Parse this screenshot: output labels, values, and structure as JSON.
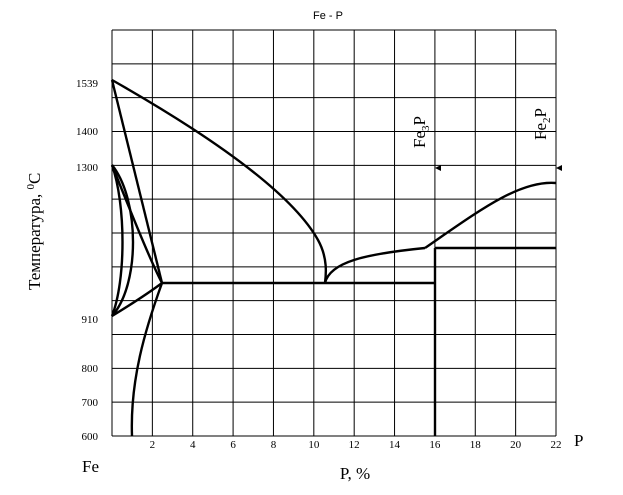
{
  "title": "Fe - P",
  "x_axis": {
    "label": "P, %",
    "end_label": "P",
    "origin_label": "Fe",
    "ticks": [
      "2",
      "4",
      "6",
      "8",
      "10",
      "12",
      "14",
      "16",
      "18",
      "20",
      "22"
    ]
  },
  "y_axis": {
    "label": {
      "text": "Температура, ",
      "sup": "0",
      "unit": "C"
    },
    "ticks": [
      "600",
      "700",
      "800",
      "910",
      "1300",
      "1400",
      "1539"
    ]
  },
  "phases": [
    {
      "base": "Fe",
      "sub": "3",
      "tail": "P"
    },
    {
      "base": "Fe",
      "sub": "2",
      "tail": "P"
    }
  ]
}
